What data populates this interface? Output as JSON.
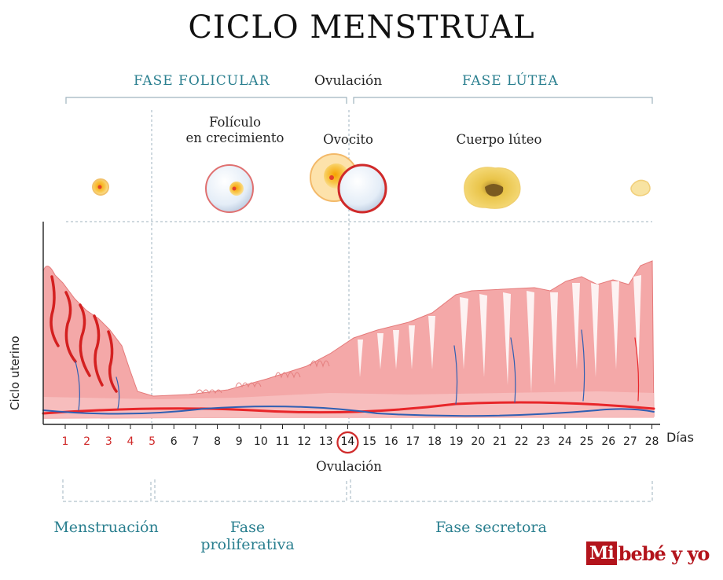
{
  "title": "CICLO MENSTRUAL",
  "phases_top": {
    "follicular": "FASE FOLICULAR",
    "ovulation": "Ovulación",
    "luteal": "FASE LÚTEA"
  },
  "ovary_labels": {
    "growing_follicle_line1": "Folículo",
    "growing_follicle_line2": "en crecimiento",
    "oocyte": "Ovocito",
    "corpus_luteum": "Cuerpo lúteo"
  },
  "y_axis_label": "Ciclo uterino",
  "x_axis_label": "Días",
  "days": [
    "1",
    "2",
    "3",
    "4",
    "5",
    "6",
    "7",
    "8",
    "9",
    "10",
    "11",
    "12",
    "13",
    "14",
    "15",
    "16",
    "17",
    "18",
    "19",
    "20",
    "21",
    "22",
    "23",
    "24",
    "25",
    "26",
    "27",
    "28"
  ],
  "menstruation_days": [
    1,
    5
  ],
  "ovulation_day": 14,
  "ovulation_below": "Ovulación",
  "phases_bottom": {
    "menstruation": "Menstruación",
    "proliferative_line1": "Fase",
    "proliferative_line2": "proliferativa",
    "secretory": "Fase secretora"
  },
  "colors": {
    "accent_teal": "#2a7f8f",
    "menstruation_red": "#d02a2a",
    "endometrium_pink": "#f2a3a3",
    "brand_red": "#b3141c"
  },
  "logo": {
    "mi": "Mi",
    "rest": "bebé y yo"
  }
}
